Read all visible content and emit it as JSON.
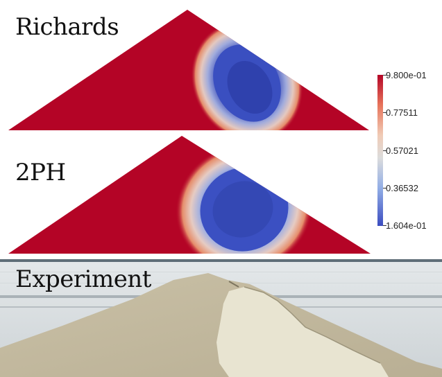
{
  "panels": {
    "richards": {
      "label": "Richards"
    },
    "two_phase": {
      "label": "2PH"
    },
    "experiment": {
      "label": "Experiment"
    }
  },
  "colorbar": {
    "ticks": [
      "9.800e-01",
      "0.77511",
      "0.57021",
      "0.36532",
      "1.604e-01"
    ],
    "colors": {
      "high": "#b40426",
      "mid": "#dddcdc",
      "low": "#3b4cc0"
    }
  }
}
